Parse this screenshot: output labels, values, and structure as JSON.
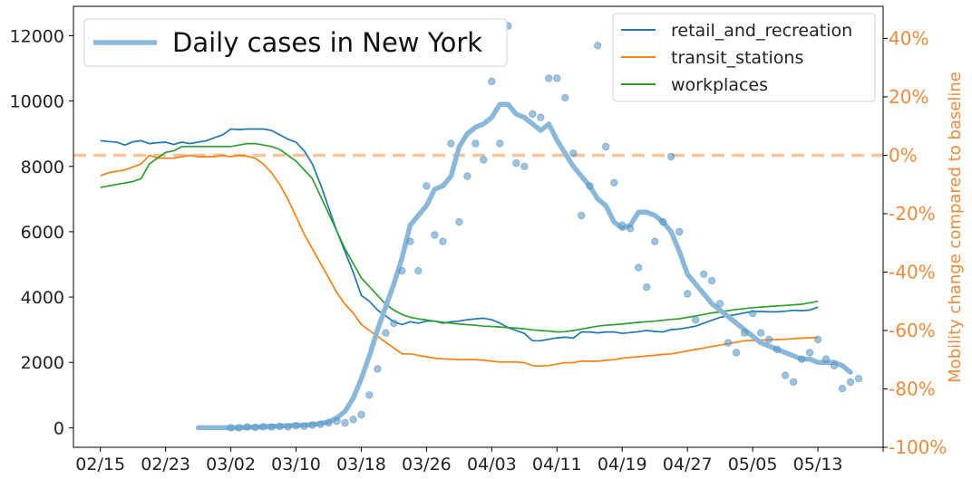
{
  "chart_data": {
    "type": "line",
    "title": "",
    "xlabel": "",
    "x_tick_labels": [
      "02/15",
      "02/23",
      "03/02",
      "03/10",
      "03/18",
      "03/26",
      "04/03",
      "04/11",
      "04/19",
      "04/27",
      "05/05",
      "05/13"
    ],
    "x_tick_days": [
      0,
      8,
      16,
      24,
      32,
      40,
      48,
      56,
      64,
      72,
      80,
      88
    ],
    "x_range": [
      -3.3,
      96
    ],
    "left_axis": {
      "label": "",
      "ylim": [
        -600,
        12900
      ],
      "ticks": [
        0,
        2000,
        4000,
        6000,
        8000,
        10000,
        12000
      ],
      "tick_labels": [
        "0",
        "2000",
        "4000",
        "6000",
        "8000",
        "10000",
        "12000"
      ]
    },
    "right_axis": {
      "label": "Mobility change compared to baseline",
      "ylim": [
        -100,
        51
      ],
      "ticks": [
        -100,
        -80,
        -60,
        -40,
        -20,
        0,
        20,
        40
      ],
      "tick_labels": [
        "-100%",
        "-80%",
        "-60%",
        "-40%",
        "-20%",
        "0%",
        "20%",
        "40%"
      ],
      "baseline_value": 0
    },
    "daily_cases_points": {
      "name": "",
      "color": "#5b9bc9",
      "x": [
        16,
        17,
        18,
        19,
        20,
        21,
        22,
        23,
        24,
        25,
        26,
        27,
        28,
        29,
        30,
        31,
        32,
        33,
        34,
        35,
        36,
        37,
        38,
        39,
        40,
        41,
        42,
        43,
        44,
        45,
        46,
        47,
        48,
        49,
        50,
        51,
        52,
        53,
        54,
        55,
        56,
        57,
        58,
        59,
        60,
        61,
        62,
        63,
        64,
        65,
        66,
        67,
        68,
        69,
        70,
        71,
        72,
        73,
        74,
        75,
        76,
        77,
        78,
        79,
        80,
        81,
        82,
        83,
        84,
        85,
        86,
        87,
        88,
        89,
        90,
        91,
        92,
        93
      ],
      "y": [
        0,
        0,
        20,
        10,
        30,
        20,
        40,
        30,
        60,
        50,
        80,
        100,
        150,
        200,
        150,
        250,
        400,
        1000,
        1800,
        2900,
        3200,
        4800,
        5700,
        4800,
        7400,
        5900,
        5700,
        8700,
        6300,
        7700,
        8700,
        8200,
        10600,
        8700,
        12300,
        8100,
        8000,
        9600,
        9500,
        10700,
        10700,
        10100,
        8400,
        6500,
        7400,
        11700,
        8600,
        7500,
        6200,
        6100,
        4900,
        4300,
        5700,
        6300,
        8300,
        6000,
        4100,
        3300,
        4700,
        4500,
        3800,
        2600,
        2300,
        2900,
        3500,
        2900,
        2700,
        2400,
        1600,
        1400,
        2100,
        2300,
        2700,
        2100,
        1900,
        1200,
        1400,
        1500
      ]
    },
    "daily_cases_smooth": {
      "name": "Daily cases in New York",
      "color": "#8ab8da",
      "x": [
        12,
        16,
        17,
        18,
        19,
        20,
        21,
        22,
        23,
        24,
        25,
        26,
        27,
        28,
        29,
        30,
        31,
        32,
        33,
        34,
        35,
        36,
        37,
        38,
        39,
        40,
        41,
        42,
        43,
        44,
        45,
        46,
        47,
        48,
        49,
        50,
        51,
        52,
        53,
        54,
        55,
        56,
        57,
        58,
        59,
        60,
        61,
        62,
        63,
        64,
        65,
        66,
        67,
        68,
        69,
        70,
        71,
        72,
        73,
        74,
        75,
        76,
        77,
        78,
        79,
        80,
        81,
        82,
        83,
        84,
        85,
        86,
        87,
        88,
        89,
        90,
        91,
        92
      ],
      "y": [
        0,
        0,
        0,
        10,
        20,
        30,
        40,
        50,
        60,
        70,
        80,
        100,
        130,
        180,
        300,
        500,
        900,
        1500,
        2200,
        3000,
        3700,
        4400,
        5200,
        6200,
        6500,
        6800,
        7300,
        7400,
        7700,
        8600,
        9000,
        9200,
        9300,
        9500,
        9900,
        9900,
        9600,
        9500,
        9300,
        9100,
        9300,
        8800,
        8400,
        8000,
        7700,
        7400,
        7000,
        6800,
        6300,
        6100,
        6200,
        6600,
        6600,
        6500,
        6300,
        6000,
        5400,
        4700,
        4400,
        4100,
        3800,
        3600,
        3400,
        3200,
        3000,
        2800,
        2600,
        2500,
        2400,
        2300,
        2200,
        2100,
        2100,
        2000,
        2000,
        2000,
        1900,
        1700
      ]
    },
    "series": [
      {
        "name": "retail_and_recreation",
        "color": "#1f77b4",
        "x": [
          0,
          1,
          2,
          3,
          4,
          5,
          6,
          7,
          8,
          9,
          10,
          11,
          12,
          13,
          14,
          15,
          16,
          17,
          18,
          19,
          20,
          21,
          22,
          23,
          24,
          25,
          26,
          27,
          28,
          29,
          30,
          31,
          32,
          33,
          34,
          35,
          36,
          37,
          38,
          39,
          40,
          41,
          42,
          43,
          44,
          45,
          46,
          47,
          48,
          49,
          50,
          51,
          52,
          53,
          54,
          55,
          56,
          57,
          58,
          59,
          60,
          61,
          62,
          63,
          64,
          65,
          66,
          67,
          68,
          69,
          70,
          71,
          72,
          73,
          74,
          75,
          76,
          77,
          78,
          79,
          80,
          81,
          82,
          83,
          84,
          85,
          86,
          87,
          88
        ],
        "y": [
          5,
          4.7,
          4.5,
          3.5,
          4.6,
          5,
          4,
          4.3,
          4.5,
          3.7,
          4.5,
          4,
          4.5,
          5,
          6,
          7,
          9,
          8.8,
          9,
          9,
          9,
          8.5,
          7,
          5.5,
          4.5,
          1.5,
          -3,
          -10,
          -18,
          -26,
          -33,
          -40,
          -48,
          -50,
          -53,
          -55,
          -57,
          -58,
          -57,
          -57.5,
          -56.8,
          -56.8,
          -57.5,
          -57,
          -56.8,
          -56.3,
          -56,
          -55.8,
          -56.3,
          -57.5,
          -59,
          -60,
          -61,
          -63.5,
          -63.5,
          -63,
          -62.5,
          -62.3,
          -62.6,
          -60.5,
          -60.5,
          -60.8,
          -60.5,
          -60.5,
          -61,
          -60.7,
          -60.4,
          -60,
          -60.3,
          -60.5,
          -59.7,
          -59.5,
          -59,
          -58.5,
          -57.5,
          -56.5,
          -55.5,
          -55,
          -54.5,
          -54,
          -53.5,
          -53.5,
          -53.6,
          -53.6,
          -53.4,
          -53.1,
          -53.2,
          -53,
          -52
        ]
      },
      {
        "name": "transit_stations",
        "color": "#ff7f0e",
        "x": [
          0,
          1,
          2,
          3,
          4,
          5,
          6,
          7,
          8,
          9,
          10,
          11,
          12,
          13,
          14,
          15,
          16,
          17,
          18,
          19,
          20,
          21,
          22,
          23,
          24,
          25,
          26,
          27,
          28,
          29,
          30,
          31,
          32,
          33,
          34,
          35,
          36,
          37,
          38,
          39,
          40,
          41,
          42,
          43,
          44,
          45,
          46,
          47,
          48,
          49,
          50,
          51,
          52,
          53,
          54,
          55,
          56,
          57,
          58,
          59,
          60,
          61,
          62,
          63,
          64,
          65,
          66,
          67,
          68,
          69,
          70,
          71,
          72,
          73,
          74,
          75,
          76,
          77,
          78,
          79,
          80,
          81,
          82,
          83,
          84,
          85,
          86,
          87,
          88
        ],
        "y": [
          -7,
          -6,
          -5.5,
          -5,
          -4,
          -3,
          0,
          -1,
          -1,
          -1,
          -0.5,
          0,
          -0.5,
          -0.5,
          -0.5,
          0,
          -0.5,
          0,
          -0.3,
          -1,
          -3,
          -6,
          -10,
          -15,
          -21,
          -27,
          -32,
          -37,
          -42,
          -47,
          -51,
          -54,
          -58,
          -60,
          -62,
          -64,
          -66,
          -68,
          -68,
          -68.5,
          -69,
          -69.5,
          -69.7,
          -69.8,
          -70,
          -70,
          -70,
          -70.2,
          -70.5,
          -70.8,
          -70.8,
          -70.8,
          -71,
          -72,
          -72.2,
          -72,
          -71.5,
          -71,
          -71,
          -70.5,
          -70.5,
          -70.5,
          -70.2,
          -70,
          -69.5,
          -69.2,
          -69,
          -68.7,
          -68.5,
          -68.2,
          -68,
          -67.5,
          -67,
          -66.5,
          -66,
          -65.5,
          -65,
          -64.5,
          -64,
          -63.5,
          -63.4,
          -63.3,
          -63.2,
          -63.1,
          -63,
          -62.8,
          -62.6,
          -62.5,
          -62.4
        ]
      },
      {
        "name": "workplaces",
        "color": "#2ca02c",
        "x": [
          0,
          1,
          2,
          3,
          4,
          5,
          6,
          7,
          8,
          9,
          10,
          11,
          12,
          13,
          14,
          15,
          16,
          17,
          18,
          19,
          20,
          21,
          22,
          23,
          24,
          25,
          26,
          27,
          28,
          29,
          30,
          31,
          32,
          33,
          34,
          35,
          36,
          37,
          38,
          39,
          40,
          41,
          42,
          43,
          44,
          45,
          46,
          47,
          48,
          49,
          50,
          51,
          52,
          53,
          54,
          55,
          56,
          57,
          58,
          59,
          60,
          61,
          62,
          63,
          64,
          65,
          66,
          67,
          68,
          69,
          70,
          71,
          72,
          73,
          74,
          75,
          76,
          77,
          78,
          79,
          80,
          81,
          82,
          83,
          84,
          85,
          86,
          87,
          88
        ],
        "y": [
          -11,
          -10.5,
          -10,
          -9.5,
          -9,
          -8,
          -3,
          -1,
          1,
          1.5,
          3,
          3,
          3,
          3,
          3,
          3,
          3,
          3.5,
          4,
          4,
          3.5,
          3,
          2,
          0,
          -2,
          -5,
          -8,
          -14,
          -20,
          -26,
          -32,
          -37,
          -42,
          -45,
          -48,
          -51,
          -53,
          -54.5,
          -55.5,
          -56,
          -56.4,
          -56.8,
          -57.2,
          -57.5,
          -57.8,
          -58,
          -58.2,
          -58.5,
          -58.6,
          -58.8,
          -59,
          -59.2,
          -59.4,
          -59.8,
          -60,
          -60.2,
          -60.5,
          -60.4,
          -60,
          -59.5,
          -59,
          -58.5,
          -58.2,
          -58,
          -57.8,
          -57.5,
          -57.2,
          -57,
          -56.8,
          -56.5,
          -56.2,
          -56,
          -55.5,
          -55,
          -54.5,
          -54,
          -53.6,
          -53.2,
          -52.8,
          -52.5,
          -52.2,
          -52,
          -51.8,
          -51.6,
          -51.4,
          -51.2,
          -51,
          -50.5,
          -50
        ]
      }
    ],
    "legends": [
      {
        "position": "upper-left",
        "entries": [
          "Daily cases in New York"
        ]
      },
      {
        "position": "upper-right",
        "entries": [
          "retail_and_recreation",
          "transit_stations",
          "workplaces"
        ]
      }
    ],
    "grid": false
  }
}
